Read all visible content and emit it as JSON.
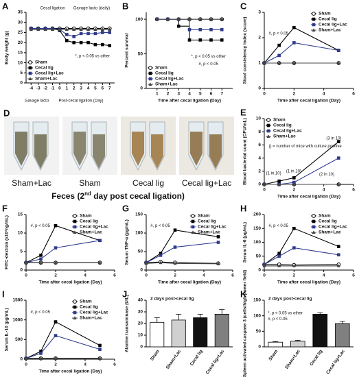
{
  "chart_data": [
    {
      "panel": "A",
      "type": "line",
      "ylabel": "Body weight (g)",
      "xlabel": null,
      "x": [
        -4,
        -3,
        -2,
        -1,
        0,
        1,
        2,
        3,
        4,
        5,
        6,
        7
      ],
      "xlim": [
        -4.7,
        7.7
      ],
      "xticks": [
        -4,
        -3,
        -2,
        -1,
        0,
        1,
        2,
        3,
        4,
        5,
        6,
        7
      ],
      "ylim": [
        0,
        35
      ],
      "yticks": [
        0,
        5,
        10,
        15,
        20,
        25,
        30,
        35
      ],
      "legend": "bottom-left",
      "annotations": [
        "Cecal ligation",
        "Gavage lacto (daily)",
        "*, p < 0.05 vs other",
        "Gavage lacto",
        "Post-cecal ligation (Day)"
      ],
      "series": [
        {
          "name": "Sham",
          "color": "#000000",
          "marker": "circle-open",
          "values": [
            27,
            27,
            27,
            27,
            27,
            27,
            27,
            27,
            27,
            27,
            27,
            27
          ]
        },
        {
          "name": "Cecal lig",
          "color": "#000000",
          "marker": "square",
          "values": [
            27,
            27,
            27,
            27,
            26,
            21,
            20,
            20,
            20,
            19,
            19,
            18.5
          ]
        },
        {
          "name": "Cecal lig+Lac",
          "color": "#2e3a8c",
          "marker": "square",
          "values": [
            27,
            27,
            27,
            27,
            26.5,
            24,
            23,
            24.5,
            24.5,
            24.5,
            25,
            25
          ]
        },
        {
          "name": "Sham+Lac",
          "color": "#444444",
          "marker": "triangle",
          "values": [
            26.5,
            26.5,
            26.5,
            26.5,
            26.5,
            26.5,
            26.5,
            26.5,
            26.5,
            26.5,
            26.5,
            26.5
          ]
        }
      ]
    },
    {
      "panel": "B",
      "type": "line",
      "step": true,
      "ylabel": "Percent survival",
      "xlabel": "Time after cecal ligation (Day)",
      "x": [
        1,
        2,
        3,
        4,
        5,
        6,
        7
      ],
      "xlim": [
        0,
        8
      ],
      "xticks": [
        1,
        2,
        3,
        4,
        5,
        6,
        7
      ],
      "ylim": [
        0,
        110
      ],
      "yticks": [
        0,
        50,
        100
      ],
      "legend": "bottom-left",
      "annotations": [
        "*, p < 0.05 vs other",
        "#, p < 0.05"
      ],
      "series": [
        {
          "name": "Sham",
          "color": "#000000",
          "marker": "circle-open",
          "values": [
            100,
            100,
            100,
            100,
            100,
            100,
            100
          ]
        },
        {
          "name": "Cecal lig",
          "color": "#000000",
          "marker": "square",
          "values": [
            100,
            100,
            90,
            70,
            70,
            70,
            70
          ]
        },
        {
          "name": "Cecal lig+Lac",
          "color": "#2e3a8c",
          "marker": "square",
          "values": [
            100,
            100,
            100,
            85,
            85,
            85,
            85
          ]
        },
        {
          "name": "Sham+Lac",
          "color": "#444444",
          "marker": "triangle",
          "values": [
            100,
            100,
            100,
            100,
            100,
            100,
            100
          ]
        }
      ]
    },
    {
      "panel": "C",
      "type": "line",
      "ylabel": "Stool consistency index (score)",
      "xlabel": "Time after cecal ligation (Day)",
      "x": [
        0,
        1,
        2,
        5
      ],
      "xlim": [
        0,
        6
      ],
      "xticks": [
        0,
        2,
        4,
        6
      ],
      "ylim": [
        0,
        3
      ],
      "yticks": [
        0,
        1,
        2,
        3
      ],
      "legend": "top-right",
      "annotations": [
        "#, p < 0.05"
      ],
      "series": [
        {
          "name": "Sham",
          "color": "#000000",
          "marker": "circle-open",
          "values": [
            1,
            1,
            1,
            1
          ]
        },
        {
          "name": "Cecal lig",
          "color": "#000000",
          "marker": "square",
          "values": [
            1,
            1.7,
            2.4,
            1.5
          ]
        },
        {
          "name": "Cecal lig+Lac",
          "color": "#2e3a8c",
          "marker": "square",
          "values": [
            1,
            1.3,
            1.8,
            1.5
          ]
        },
        {
          "name": "Sham+Lac",
          "color": "#444444",
          "marker": "triangle",
          "values": [
            1,
            1,
            1,
            1
          ]
        }
      ]
    },
    {
      "panel": "E",
      "type": "line",
      "ylabel": "Blood bacterial count (CFU/mL)",
      "xlabel": "Time after cecal ligation (Day)",
      "x": [
        0,
        1,
        2,
        5
      ],
      "xlim": [
        0,
        6
      ],
      "xticks": [
        0,
        2,
        4,
        6
      ],
      "ylim": [
        0,
        10
      ],
      "yticks": [
        0,
        2,
        4,
        6,
        8,
        10
      ],
      "legend": "top-left",
      "annotations": [
        "(3 in 10)",
        "(1 in 10)",
        "(1 in 10)",
        "(2 in 10)",
        "() = number of mice with culture positive"
      ],
      "series": [
        {
          "name": "Sham",
          "color": "#000000",
          "marker": "circle-open",
          "values": [
            0,
            0,
            0,
            0
          ]
        },
        {
          "name": "Cecal lig",
          "color": "#000000",
          "marker": "square",
          "values": [
            0,
            0.5,
            1,
            6.5
          ]
        },
        {
          "name": "Cecal lig+Lac",
          "color": "#2e3a8c",
          "marker": "square",
          "values": [
            0,
            0,
            0.3,
            4
          ]
        },
        {
          "name": "Sham+Lac",
          "color": "#444444",
          "marker": "triangle",
          "values": [
            0,
            0,
            0,
            0
          ]
        }
      ]
    },
    {
      "panel": "F",
      "type": "line",
      "ylabel": "FITC-dextran (x10²ng/mL)",
      "xlabel": "Time after cecal ligation (Day)",
      "x": [
        0,
        1,
        2,
        5
      ],
      "xlim": [
        0,
        6
      ],
      "xticks": [
        0,
        2,
        4,
        6
      ],
      "ylim": [
        0,
        15
      ],
      "yticks": [
        0,
        5,
        10,
        15
      ],
      "legend": "top-right",
      "annotations": [
        "#, p < 0.05"
      ],
      "series": [
        {
          "name": "Sham",
          "color": "#000000",
          "marker": "circle-open",
          "values": [
            2,
            2,
            2,
            2
          ]
        },
        {
          "name": "Cecal lig",
          "color": "#000000",
          "marker": "square",
          "values": [
            2,
            4,
            12,
            8
          ]
        },
        {
          "name": "Cecal lig+Lac",
          "color": "#2e3a8c",
          "marker": "square",
          "values": [
            2,
            3,
            6,
            8
          ]
        },
        {
          "name": "Sham+Lac",
          "color": "#444444",
          "marker": "triangle",
          "values": [
            2,
            2,
            2,
            2
          ]
        }
      ]
    },
    {
      "panel": "G",
      "type": "line",
      "ylabel": "Serum TNF-α (pg/mL)",
      "xlabel": "Time after cecal ligation (Day)",
      "x": [
        0,
        1,
        2,
        5
      ],
      "xlim": [
        0,
        6
      ],
      "xticks": [
        0,
        2,
        4,
        6
      ],
      "ylim": [
        0,
        150
      ],
      "yticks": [
        0,
        50,
        100,
        150
      ],
      "legend": "top-right",
      "annotations": [
        "#, p < 0.05"
      ],
      "series": [
        {
          "name": "Sham",
          "color": "#000000",
          "marker": "circle-open",
          "values": [
            20,
            22,
            20,
            18
          ]
        },
        {
          "name": "Cecal lig",
          "color": "#000000",
          "marker": "square",
          "values": [
            20,
            45,
            108,
            90
          ]
        },
        {
          "name": "Cecal lig+Lac",
          "color": "#2e3a8c",
          "marker": "square",
          "values": [
            20,
            40,
            62,
            75
          ]
        },
        {
          "name": "Sham+Lac",
          "color": "#444444",
          "marker": "triangle",
          "values": [
            18,
            20,
            18,
            17
          ]
        }
      ]
    },
    {
      "panel": "H",
      "type": "line",
      "ylabel": "Serum IL-6 (pg/mL)",
      "xlabel": "Time after cecal ligation (Day)",
      "x": [
        0,
        1,
        2,
        5
      ],
      "xlim": [
        0,
        6
      ],
      "xticks": [
        0,
        2,
        4,
        6
      ],
      "ylim": [
        0,
        200
      ],
      "yticks": [
        0,
        50,
        100,
        150,
        200
      ],
      "legend": "top-right",
      "annotations": [
        "#, p < 0.05"
      ],
      "series": [
        {
          "name": "Sham",
          "color": "#000000",
          "marker": "circle-open",
          "values": [
            20,
            20,
            18,
            20
          ]
        },
        {
          "name": "Cecal lig",
          "color": "#000000",
          "marker": "square",
          "values": [
            20,
            60,
            150,
            85
          ]
        },
        {
          "name": "Cecal lig+Lac",
          "color": "#2e3a8c",
          "marker": "square",
          "values": [
            20,
            50,
            80,
            55
          ]
        },
        {
          "name": "Sham+Lac",
          "color": "#444444",
          "marker": "triangle",
          "values": [
            15,
            15,
            15,
            15
          ]
        }
      ]
    },
    {
      "panel": "I",
      "type": "line",
      "ylabel": "Serum IL-10 (pg/mL)",
      "xlabel": "Time after cecal ligation (Day)",
      "x": [
        0,
        1,
        2,
        5
      ],
      "xlim": [
        0,
        6
      ],
      "xticks": [
        0,
        2,
        4,
        6
      ],
      "ylim": [
        0,
        1500
      ],
      "yticks": [
        0,
        500,
        1000,
        1500
      ],
      "legend": "top-right",
      "annotations": [
        "#, p < 0.05"
      ],
      "series": [
        {
          "name": "Sham",
          "color": "#000000",
          "marker": "circle-open",
          "values": [
            20,
            20,
            20,
            20
          ]
        },
        {
          "name": "Cecal lig",
          "color": "#000000",
          "marker": "square",
          "values": [
            20,
            200,
            950,
            350
          ]
        },
        {
          "name": "Cecal lig+Lac",
          "color": "#2e3a8c",
          "marker": "square",
          "values": [
            20,
            150,
            600,
            250
          ]
        },
        {
          "name": "Sham+Lac",
          "color": "#444444",
          "marker": "triangle",
          "values": [
            20,
            20,
            20,
            20
          ]
        }
      ]
    },
    {
      "panel": "J",
      "type": "bar",
      "title": "2 days post-cecal lig",
      "ylabel": "Alanine transaminase (U/L)",
      "categories": [
        "Sham",
        "Sham+Lac",
        "Cecal lig",
        "Cecal lig+Lac"
      ],
      "values": [
        21,
        23,
        25,
        28
      ],
      "errors": [
        4,
        5,
        3,
        4
      ],
      "colors": [
        "#ffffff",
        "#d0d0d0",
        "#111111",
        "#808080"
      ],
      "ylim": [
        0,
        40
      ],
      "yticks": [
        0,
        10,
        20,
        30,
        40
      ],
      "annotations": []
    },
    {
      "panel": "K",
      "type": "bar",
      "title": "2 days post-cecal lig",
      "ylabel": "Spleen activated caspase 3 (cells/high power field)",
      "categories": [
        "Sham",
        "Sham+Lac",
        "Cecal lig",
        "Cecal lig+Lac"
      ],
      "values": [
        15,
        18,
        105,
        75
      ],
      "errors": [
        2,
        3,
        5,
        8
      ],
      "colors": [
        "#ffffff",
        "#d0d0d0",
        "#111111",
        "#808080"
      ],
      "ylim": [
        0,
        150
      ],
      "yticks": [
        0,
        50,
        100,
        150
      ],
      "annotations": [
        "*, p < 0.05 vs other",
        "#, p < 0.05"
      ]
    }
  ],
  "photos": {
    "panel": "D",
    "labels": [
      "Sham+Lac",
      "Sham",
      "Cecal lig",
      "Cecal lig+Lac"
    ],
    "caption": [
      "Feces (2",
      "nd",
      " day post cecal ligation)"
    ]
  }
}
